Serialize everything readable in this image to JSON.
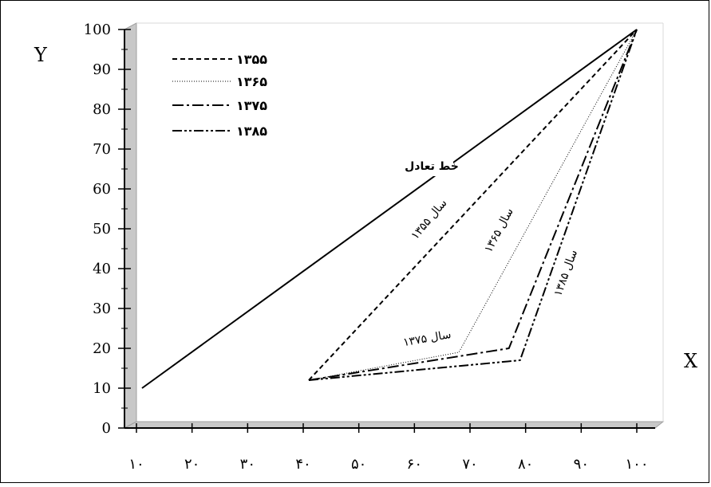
{
  "chart_data": {
    "type": "line",
    "title": "",
    "xlabel": "X",
    "ylabel": "Y",
    "xlim": [
      10,
      100
    ],
    "ylim": [
      0,
      100
    ],
    "x_ticks": [
      10,
      20,
      30,
      40,
      50,
      60,
      70,
      80,
      90,
      100
    ],
    "x_tick_labels": [
      "۱۰",
      "۲۰",
      "۳۰",
      "۴۰",
      "۵۰",
      "۶۰",
      "۷۰",
      "۸۰",
      "۹۰",
      "۱۰۰"
    ],
    "y_ticks": [
      0,
      10,
      20,
      30,
      40,
      50,
      60,
      70,
      80,
      90,
      100
    ],
    "y_tick_labels": [
      "0",
      "10",
      "20",
      "30",
      "40",
      "50",
      "60",
      "70",
      "80",
      "90",
      "100"
    ],
    "grid": false,
    "legend_position": "top-left",
    "equality_line": {
      "label": "خط تعادل",
      "points": [
        [
          11,
          10
        ],
        [
          100,
          100
        ]
      ]
    },
    "series": [
      {
        "name": "۱۳۵۵",
        "style": "dashed",
        "points": [
          [
            41,
            12
          ],
          [
            100,
            100
          ]
        ]
      },
      {
        "name": "۱۳۶۵",
        "style": "dotted",
        "points": [
          [
            41,
            12
          ],
          [
            68,
            19
          ],
          [
            100,
            100
          ]
        ]
      },
      {
        "name": "۱۳۷۵",
        "style": "dash-dot",
        "points": [
          [
            41,
            12
          ],
          [
            77,
            20
          ],
          [
            100,
            100
          ]
        ]
      },
      {
        "name": "۱۳۸۵",
        "style": "dash-dot-dot",
        "points": [
          [
            41,
            12
          ],
          [
            79,
            17
          ],
          [
            100,
            100
          ]
        ]
      }
    ],
    "annotations": [
      {
        "text": "سال ۱۳۵۵"
      },
      {
        "text": "سال ۱۳۶۵"
      },
      {
        "text": "سال ۱۳۷۵"
      },
      {
        "text": "سال ۱۳۸۵"
      }
    ],
    "colors": {
      "line": "#000000",
      "wall": "#c8c8c8",
      "wall_edge": "#a8a8a8"
    }
  }
}
